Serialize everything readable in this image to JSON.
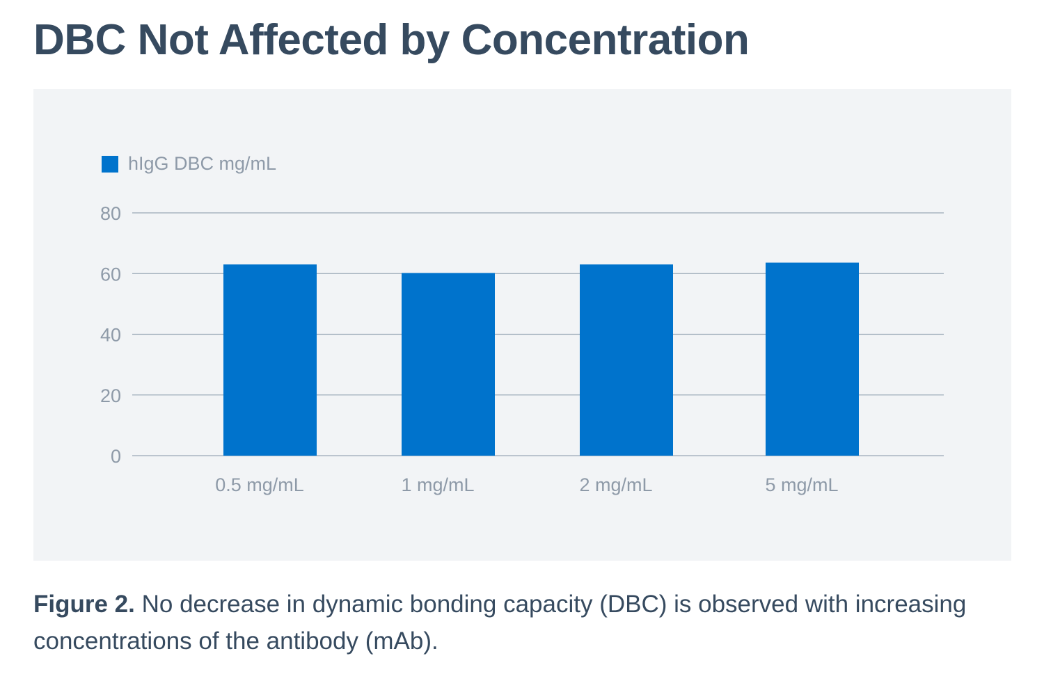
{
  "title": "DBC Not Affected by Concentration",
  "caption": {
    "label": "Figure 2.",
    "text": " No decrease in dynamic bonding capacity (DBC) is observed with increasing concentrations of the antibody (mAb)."
  },
  "colors": {
    "bar": "#0073cc",
    "grid": "#9aa8b6",
    "tick_text": "#8e9aa8",
    "title": "#364a5f",
    "panel": "#f2f4f6"
  },
  "chart_data": {
    "type": "bar",
    "categories": [
      "0.5 mg/mL",
      "1 mg/mL",
      "2 mg/mL",
      "5 mg/mL"
    ],
    "series": [
      {
        "name": "hIgG DBC mg/mL",
        "values": [
          63,
          60.2,
          63,
          63.6
        ]
      }
    ],
    "ylim": [
      0,
      80
    ],
    "yticks": [
      0,
      20,
      40,
      60,
      80
    ],
    "xlabel": "",
    "ylabel": "",
    "grid": true,
    "legend": "top-left"
  }
}
